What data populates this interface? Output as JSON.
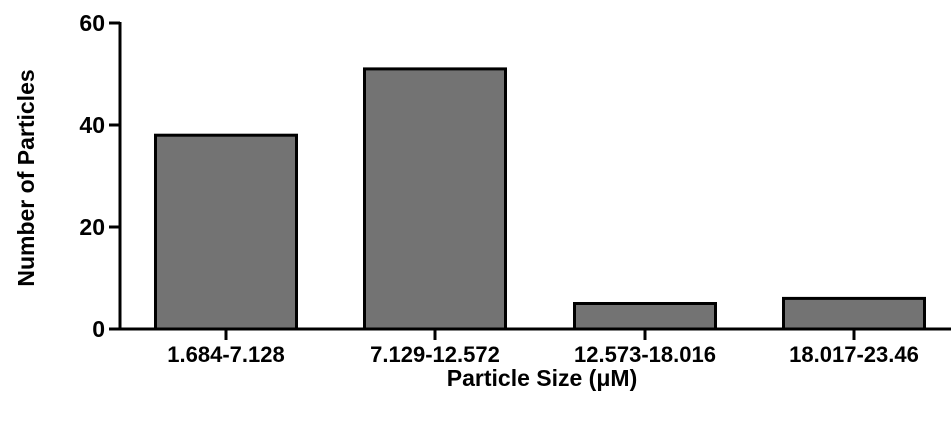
{
  "chart_data": {
    "type": "bar",
    "title": "",
    "xlabel": "Particle Size (μM)",
    "ylabel": "Number of Particles",
    "categories": [
      "1.684-7.128",
      "7.129-12.572",
      "12.573-18.016",
      "18.017-23.46"
    ],
    "values": [
      38,
      51,
      5,
      6
    ],
    "ylim": [
      0,
      60
    ],
    "yticks": [
      "0",
      "20",
      "40",
      "60"
    ],
    "grid": false,
    "legend": "none",
    "bar_color": "#737373",
    "bar_edge_color": "#000000"
  }
}
